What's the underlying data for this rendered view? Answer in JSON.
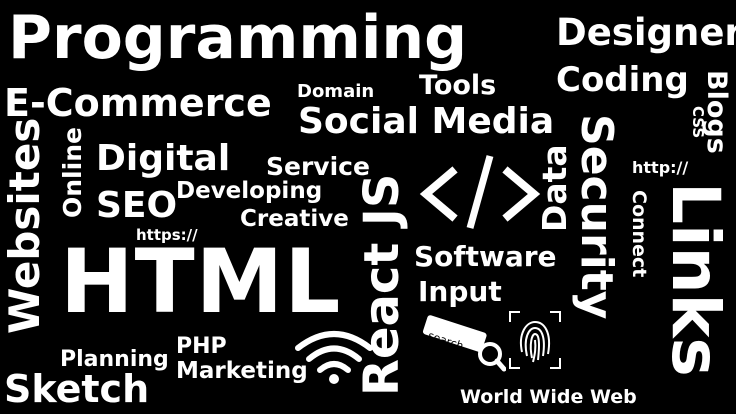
{
  "background_color": "#000000",
  "text_color": "#ffffff",
  "words": {
    "programming": "Programming",
    "designer": "Designer",
    "coding": "Coding",
    "blogs": "Blogs",
    "ecommerce": "E-Commerce",
    "domain": "Domain",
    "tools": "Tools",
    "social_media": "Social Media",
    "css": "CSS",
    "websites": "Websites",
    "online": "Online",
    "digital": "Digital",
    "service": "Service",
    "data": "Data",
    "security": "Security",
    "http": "http://",
    "links": "Links",
    "seo": "SEO",
    "developing": "Developing",
    "creative": "Creative",
    "connect": "Connect",
    "https": "https://",
    "react_js": "React JS",
    "html": "HTML",
    "software": "Software",
    "input": "Input",
    "search": "search",
    "php": "PHP",
    "planning": "Planning",
    "marketing": "Marketing",
    "sketch": "Sketch",
    "www": "World Wide Web"
  },
  "icons": [
    "code-brackets-icon",
    "wifi-icon",
    "search-bar-icon",
    "fingerprint-icon"
  ]
}
